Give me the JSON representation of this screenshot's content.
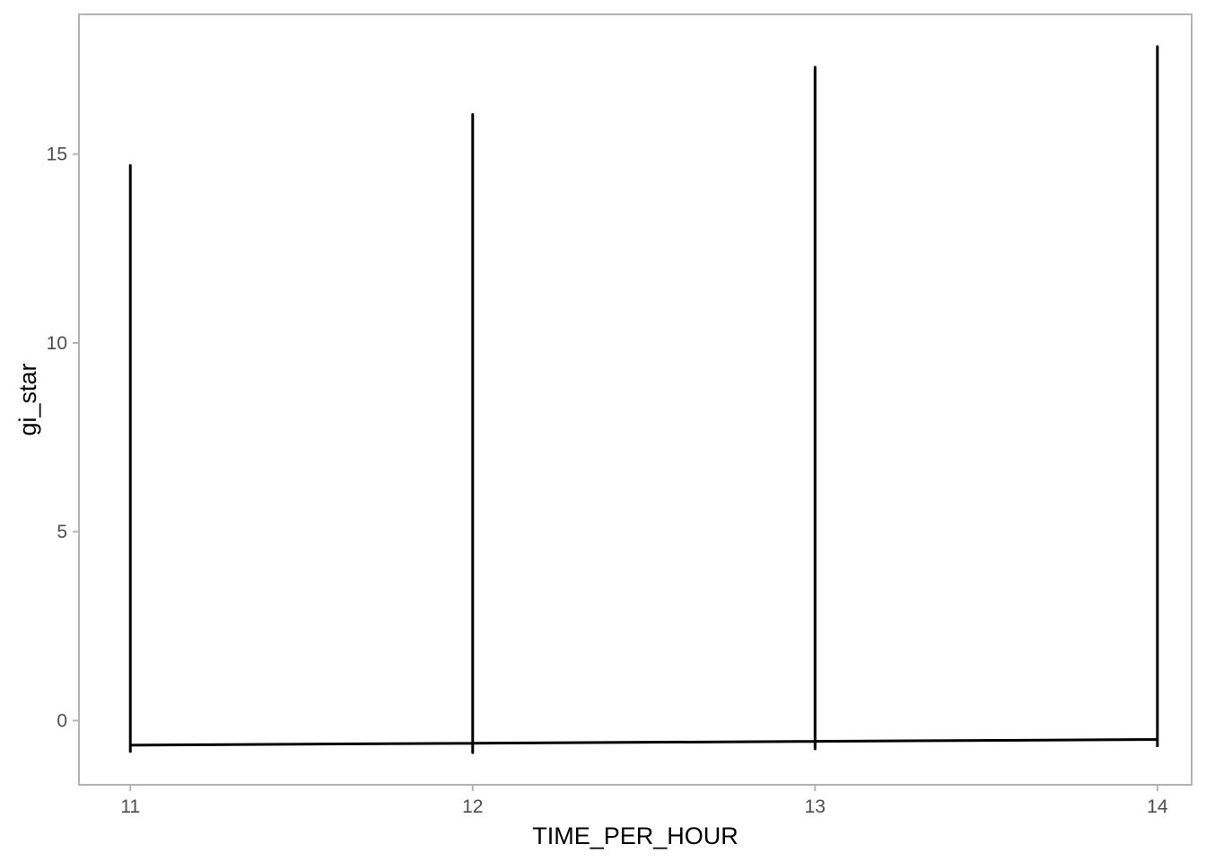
{
  "chart_data": {
    "type": "line",
    "title": "",
    "xlabel": "TIME_PER_HOUR",
    "ylabel": "gi_star",
    "xlim": [
      10.85,
      14.1
    ],
    "ylim": [
      -1.7,
      18.7
    ],
    "x_ticks": [
      11,
      12,
      13,
      14
    ],
    "x_tick_labels": [
      "11",
      "12",
      "13",
      "14"
    ],
    "y_ticks": [
      0,
      5,
      10,
      15
    ],
    "y_tick_labels": [
      "0",
      "5",
      "10",
      "15"
    ],
    "grid": false,
    "legend": "none",
    "line_color": "#000000",
    "series": [
      {
        "points": [
          {
            "x": 11,
            "y": -0.85
          },
          {
            "x": 11,
            "y": 14.7
          },
          {
            "x": 11,
            "y": -0.65
          },
          {
            "x": 12,
            "y": -0.6
          },
          {
            "x": 12,
            "y": 16.05
          },
          {
            "x": 12,
            "y": -0.85
          },
          {
            "x": 12,
            "y": -0.6
          },
          {
            "x": 13,
            "y": -0.55
          },
          {
            "x": 13,
            "y": 17.3
          },
          {
            "x": 13,
            "y": -0.75
          },
          {
            "x": 13,
            "y": -0.55
          },
          {
            "x": 14,
            "y": -0.5
          },
          {
            "x": 14,
            "y": 17.85
          },
          {
            "x": 14,
            "y": -0.7
          }
        ]
      }
    ]
  }
}
